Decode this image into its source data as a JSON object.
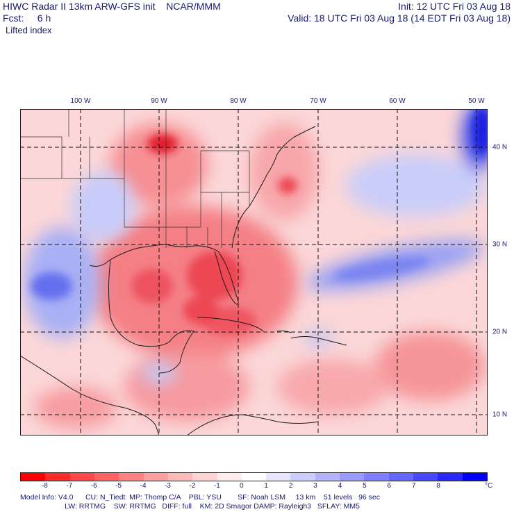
{
  "header": {
    "title": "HIWC Radar II 13km ARW-GFS init    NCAR/MMM",
    "init": "Init: 12 UTC Fri 03 Aug 18",
    "fcst": "Fcst:     6 h",
    "valid": "Valid: 18 UTC Fri 03 Aug 18 (14 EDT Fri 03 Aug 18)",
    "field": "Lifted index"
  },
  "map": {
    "lon_labels": [
      "100 W",
      "90 W",
      "80 W",
      "70 W",
      "60 W",
      "50 W"
    ],
    "lat_labels": [
      "40 N",
      "30 N",
      "20 N",
      "10 N"
    ],
    "colors": {
      "gridline": "#111111",
      "border": "#222222",
      "neg_strong": "#e8102a",
      "neg_mid": "#f57f83",
      "neg_light": "#fbd0d2",
      "pos_light": "#cfd4fb",
      "pos_mid": "#8e97f2",
      "pos_strong": "#1e22e3"
    }
  },
  "colorbar": {
    "colors": [
      "#ff0000",
      "#ff2a2a",
      "#ff4848",
      "#ff6464",
      "#ff8282",
      "#ff9e9e",
      "#ffbaba",
      "#ffd4d4",
      "#ffeded",
      "#ffffff",
      "#e6e6ff",
      "#cdcdff",
      "#b3b3ff",
      "#9a9aff",
      "#8080ff",
      "#6565ff",
      "#4848ff",
      "#2828ff",
      "#0000ff"
    ],
    "ticks": [
      "-8",
      "-7",
      "-6",
      "-5",
      "-4",
      "-3",
      "-2",
      "-1",
      "0",
      "1",
      "2",
      "3",
      "4",
      "5",
      "6",
      "7",
      "8"
    ],
    "unit": "°C"
  },
  "footer": {
    "line1": "Model Info: V4.0      CU: N_Tiedt  MP: Thomp C/A    PBL: YSU        SF: Noah LSM     13 km    51 levels   96 sec",
    "line2": "                      LW: RRTMG    SW: RRTMG   DIFF: full    KM: 2D Smagor DAMP: Rayleigh3   SFLAY: MM5"
  }
}
